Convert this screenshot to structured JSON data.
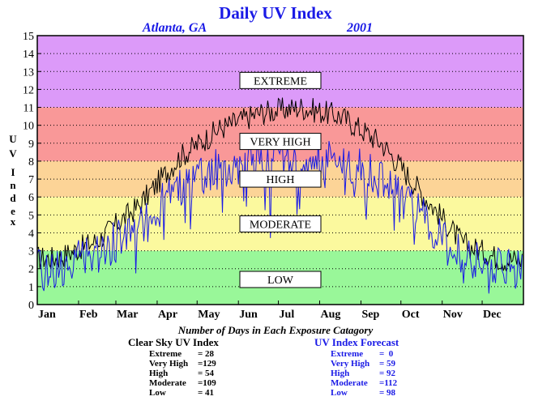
{
  "header": {
    "title": "Daily UV Index",
    "location": "Atlanta, GA",
    "year": "2001"
  },
  "chart_data": {
    "type": "line",
    "title": "Daily UV Index",
    "ylabel": "UV Index",
    "ylim": [
      0,
      15
    ],
    "yticks": [
      "0",
      "1",
      "2",
      "3",
      "4",
      "5",
      "6",
      "7",
      "8",
      "9",
      "10",
      "11",
      "12",
      "13",
      "14",
      "15"
    ],
    "categories": [
      "Jan",
      "Feb",
      "Mar",
      "Apr",
      "May",
      "Jun",
      "Jul",
      "Aug",
      "Sep",
      "Oct",
      "Nov",
      "Dec"
    ],
    "grid": true,
    "bands": [
      {
        "label": "LOW",
        "from": 0,
        "to": 3,
        "color": "#99f799"
      },
      {
        "label": "MODERATE",
        "from": 3,
        "to": 6,
        "color": "#fbf99e"
      },
      {
        "label": "HIGH",
        "from": 6,
        "to": 8,
        "color": "#fcd497"
      },
      {
        "label": "VERY HIGH",
        "from": 8,
        "to": 11,
        "color": "#f99898"
      },
      {
        "label": "EXTREME",
        "from": 11,
        "to": 15,
        "color": "#dc9af9"
      }
    ],
    "series": [
      {
        "name": "Clear Sky UV Index",
        "color": "#000000",
        "monthly_mean": [
          2.6,
          3.6,
          5.5,
          8.2,
          9.8,
          10.7,
          11.0,
          10.5,
          9.0,
          6.2,
          3.4,
          2.5
        ]
      },
      {
        "name": "UV Index Forecast",
        "color": "#1a1ae6",
        "monthly_mean": [
          2.0,
          2.9,
          4.3,
          6.5,
          7.6,
          8.2,
          8.4,
          8.0,
          7.0,
          5.0,
          2.7,
          1.9
        ]
      }
    ]
  },
  "summary": {
    "title": "Number of Days in Each Exposure Catagory",
    "clear_sky": {
      "title": "Clear Sky UV Index",
      "rows": [
        {
          "label": "Extreme",
          "value": "= 28"
        },
        {
          "label": "Very High",
          "value": "=129"
        },
        {
          "label": "High",
          "value": "= 54"
        },
        {
          "label": "Moderate",
          "value": "=109"
        },
        {
          "label": "Low",
          "value": "= 41"
        }
      ]
    },
    "forecast": {
      "title": "UV Index Forecast",
      "rows": [
        {
          "label": "Extreme",
          "value": "=  0"
        },
        {
          "label": "Very High",
          "value": "= 59"
        },
        {
          "label": "High",
          "value": "= 92"
        },
        {
          "label": "Moderate",
          "value": "=112"
        },
        {
          "label": "Low",
          "value": "= 98"
        }
      ]
    }
  }
}
